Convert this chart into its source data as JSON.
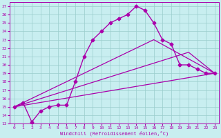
{
  "title": "",
  "xlabel": "Windchill (Refroidissement éolien,°C)",
  "xlim": [
    -0.5,
    23.5
  ],
  "ylim": [
    13,
    27.5
  ],
  "xticks": [
    0,
    1,
    2,
    3,
    4,
    5,
    6,
    7,
    8,
    9,
    10,
    11,
    12,
    13,
    14,
    15,
    16,
    17,
    18,
    19,
    20,
    21,
    22,
    23
  ],
  "yticks": [
    13,
    14,
    15,
    16,
    17,
    18,
    19,
    20,
    21,
    22,
    23,
    24,
    25,
    26,
    27
  ],
  "background_color": "#c8eef0",
  "line_color": "#aa00aa",
  "grid_color": "#99cccc",
  "lines": [
    {
      "x": [
        0,
        1,
        2,
        3,
        4,
        5,
        6,
        7,
        8,
        9,
        10,
        11,
        12,
        13,
        14,
        15,
        16,
        17,
        18,
        19,
        20,
        21,
        22,
        23
      ],
      "y": [
        15.0,
        15.5,
        13.2,
        14.5,
        15.0,
        15.2,
        15.2,
        18.0,
        21.0,
        23.0,
        24.0,
        25.0,
        25.5,
        26.0,
        27.0,
        26.5,
        25.0,
        23.0,
        22.5,
        20.0,
        20.0,
        19.5,
        19.0,
        19.0
      ],
      "marker": "D",
      "markersize": 2.5,
      "linewidth": 1.0
    },
    {
      "x": [
        0,
        23
      ],
      "y": [
        15.0,
        19.0
      ],
      "marker": null,
      "linewidth": 0.9
    },
    {
      "x": [
        0,
        20,
        23
      ],
      "y": [
        15.0,
        21.5,
        19.0
      ],
      "marker": null,
      "linewidth": 0.9
    },
    {
      "x": [
        0,
        16,
        23
      ],
      "y": [
        15.0,
        23.0,
        19.0
      ],
      "marker": null,
      "linewidth": 0.9
    }
  ]
}
